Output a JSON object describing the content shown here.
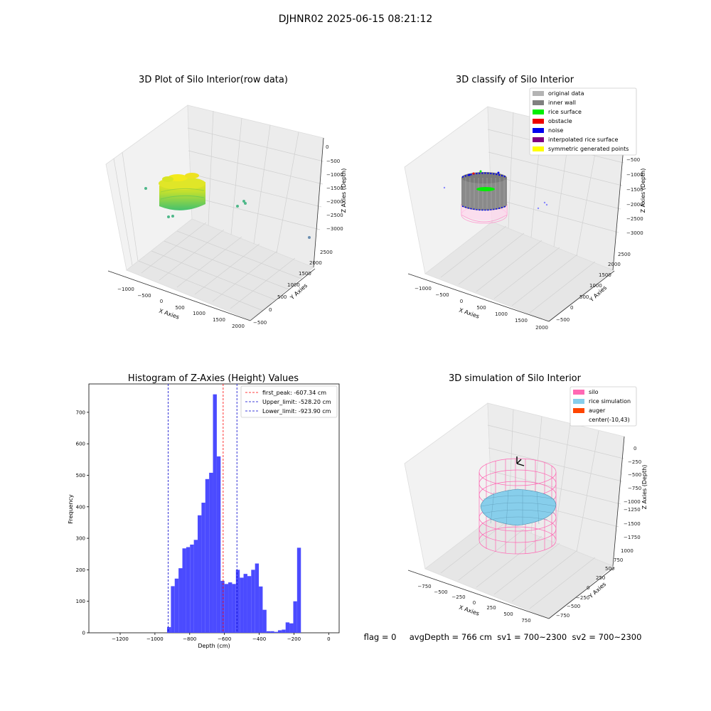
{
  "suptitle": "DJHNR02 2025-06-15 08:21:12",
  "panels": {
    "raw": {
      "title": "3D Plot of Silo Interior(row data)",
      "xlabel": "X Axies",
      "ylabel": "Y Axies",
      "zlabel": "Z Axies (Depth)",
      "xticks": [
        "−1000",
        "−500",
        "0",
        "500",
        "1000",
        "1500",
        "2000"
      ],
      "yticks": [
        "−500",
        "0",
        "500",
        "1000",
        "1500",
        "2000",
        "2500"
      ],
      "zticks": [
        "0",
        "−500",
        "−1000",
        "−1500",
        "−2000",
        "−2500",
        "−3000"
      ]
    },
    "classify": {
      "title": "3D classify of Silo Interior",
      "xlabel": "X Axies",
      "ylabel": "Y Axies",
      "zlabel": "Z Axies (Depth)",
      "xticks": [
        "−1000",
        "−500",
        "0",
        "500",
        "1000",
        "1500",
        "2000"
      ],
      "yticks": [
        "−500",
        "0",
        "500",
        "1000",
        "1500",
        "2000",
        "2500"
      ],
      "zticks": [
        "0",
        "−500",
        "−1000",
        "−1500",
        "−2000",
        "−2500",
        "−3000"
      ],
      "legend": [
        {
          "label": "original data",
          "color": "#b4b4b4"
        },
        {
          "label": "inner wall",
          "color": "#808080"
        },
        {
          "label": "rice surface",
          "color": "#00ee00"
        },
        {
          "label": "obstacle",
          "color": "#ee0000"
        },
        {
          "label": "noise",
          "color": "#0000ee"
        },
        {
          "label": "interpolated rice surface",
          "color": "#800080"
        },
        {
          "label": "symmetric generated points",
          "color": "#ffff00"
        }
      ]
    },
    "simulation": {
      "title": "3D simulation of Silo Interior",
      "xlabel": "X Axies",
      "ylabel": "Y Axies",
      "zlabel": "Z Axies (Depth)",
      "xticks": [
        "−750",
        "−500",
        "−250",
        "0",
        "250",
        "500",
        "750"
      ],
      "yticks": [
        "−750",
        "−500",
        "−250",
        "0",
        "250",
        "500",
        "750",
        "1000"
      ],
      "zticks": [
        "0",
        "−250",
        "−500",
        "−750",
        "−1000",
        "−1250",
        "−1500",
        "−1750"
      ],
      "legend": [
        {
          "label": "silo",
          "color": "#ff69b4"
        },
        {
          "label": "rice simulation",
          "color": "#87ceeb"
        },
        {
          "label": "auger",
          "color": "#ff4500"
        },
        {
          "label": "center(-10,43)",
          "color": "#ffffff"
        }
      ]
    }
  },
  "status_text": "flag = 0     avgDepth = 766 cm  sv1 = 700~2300  sv2 = 700~2300",
  "chart_data": [
    {
      "type": "bar",
      "title": "Histogram of Z-Axies (Height) Values",
      "xlabel": "Depth (cm)",
      "ylabel": "Frequency",
      "xlim": [
        -1380,
        60
      ],
      "ylim": [
        0,
        790
      ],
      "xticks": [
        -1200,
        -1000,
        -800,
        -600,
        -400,
        -200,
        0
      ],
      "yticks": [
        0,
        100,
        200,
        300,
        400,
        500,
        600,
        700
      ],
      "bin_width": 22,
      "bins": [
        {
          "x": -930,
          "v": 18
        },
        {
          "x": -908,
          "v": 148
        },
        {
          "x": -886,
          "v": 172
        },
        {
          "x": -864,
          "v": 205
        },
        {
          "x": -842,
          "v": 268
        },
        {
          "x": -820,
          "v": 272
        },
        {
          "x": -798,
          "v": 280
        },
        {
          "x": -776,
          "v": 295
        },
        {
          "x": -754,
          "v": 373
        },
        {
          "x": -732,
          "v": 413
        },
        {
          "x": -710,
          "v": 488
        },
        {
          "x": -688,
          "v": 508
        },
        {
          "x": -666,
          "v": 757
        },
        {
          "x": -644,
          "v": 560
        },
        {
          "x": -622,
          "v": 165
        },
        {
          "x": -600,
          "v": 155
        },
        {
          "x": -578,
          "v": 160
        },
        {
          "x": -556,
          "v": 155
        },
        {
          "x": -534,
          "v": 200
        },
        {
          "x": -512,
          "v": 175
        },
        {
          "x": -490,
          "v": 187
        },
        {
          "x": -468,
          "v": 180
        },
        {
          "x": -446,
          "v": 200
        },
        {
          "x": -424,
          "v": 220
        },
        {
          "x": -402,
          "v": 147
        },
        {
          "x": -380,
          "v": 73
        },
        {
          "x": -358,
          "v": 5
        },
        {
          "x": -336,
          "v": 5
        },
        {
          "x": -314,
          "v": 3
        },
        {
          "x": -292,
          "v": 8
        },
        {
          "x": -270,
          "v": 10
        },
        {
          "x": -248,
          "v": 33
        },
        {
          "x": -226,
          "v": 30
        },
        {
          "x": -204,
          "v": 100
        },
        {
          "x": -182,
          "v": 270
        }
      ],
      "vlines": [
        {
          "label": "first_peak: -607.34 cm",
          "x": -607.34,
          "color": "#ff0000"
        },
        {
          "label": "Upper_limit: -528.20 cm",
          "x": -528.2,
          "color": "#0000cc"
        },
        {
          "label": "Lower_limit: -923.90 cm",
          "x": -923.9,
          "color": "#0000cc"
        }
      ]
    }
  ]
}
